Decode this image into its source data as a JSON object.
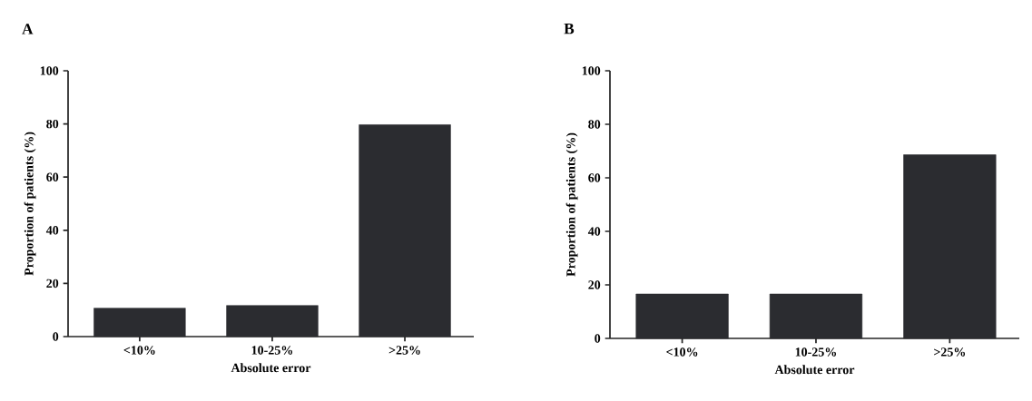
{
  "chart_data": [
    {
      "type": "bar",
      "title": "A",
      "xlabel": "Absolute error",
      "ylabel": "Proportion of patients (%)",
      "categories": [
        "<10%",
        "10-25%",
        ">25%"
      ],
      "values": [
        10.7,
        11.7,
        79.7
      ],
      "color": "#2b2c30",
      "ylim": [
        0,
        100
      ],
      "yticks": [
        0,
        20,
        40,
        60,
        80,
        100
      ]
    },
    {
      "type": "bar",
      "title": "B",
      "xlabel": "Absolute error",
      "ylabel": "Proportion of patients (%)",
      "categories": [
        "<10%",
        "10-25%",
        ">25%"
      ],
      "values": [
        16.6,
        16.6,
        68.6
      ],
      "color": "#2b2c30",
      "ylim": [
        0,
        100
      ],
      "yticks": [
        0,
        20,
        40,
        60,
        80,
        100
      ]
    }
  ]
}
